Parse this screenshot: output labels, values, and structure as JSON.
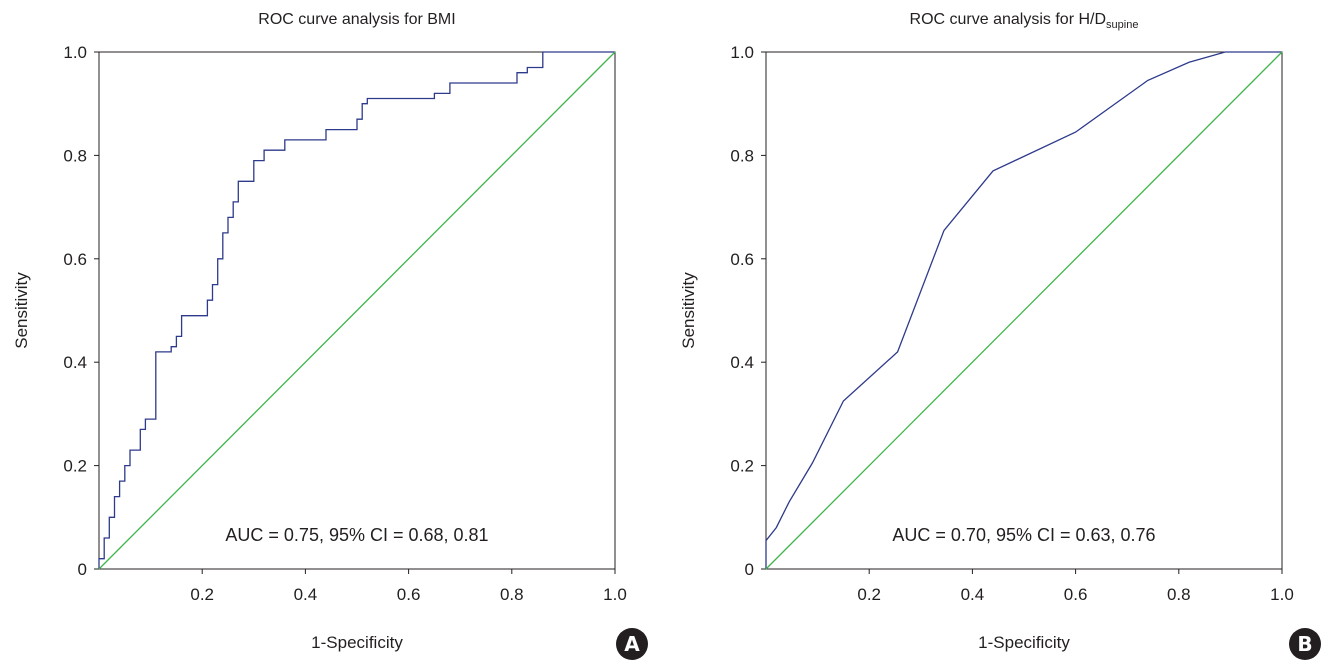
{
  "chart_data": [
    {
      "type": "line",
      "panel_label": "A",
      "title": "ROC curve analysis for BMI",
      "xlabel": "1-Specificity",
      "ylabel": "Sensitivity",
      "xlim": [
        0,
        1
      ],
      "ylim": [
        0,
        1
      ],
      "xticks": [
        "0.2",
        "0.4",
        "0.6",
        "0.8",
        "1.0"
      ],
      "yticks": [
        "0",
        "0.2",
        "0.4",
        "0.6",
        "0.8",
        "1.0"
      ],
      "annotation": "AUC = 0.75, 95% CI = 0.68, 0.81",
      "colors": {
        "curve": "#2e3a8c",
        "reference": "#3fb54a"
      },
      "series": [
        {
          "style": "step",
          "x": [
            0.0,
            0.0,
            0.01,
            0.01,
            0.02,
            0.02,
            0.03,
            0.03,
            0.04,
            0.04,
            0.05,
            0.05,
            0.06,
            0.06,
            0.08,
            0.08,
            0.09,
            0.09,
            0.11,
            0.11,
            0.14,
            0.14,
            0.15,
            0.15,
            0.16,
            0.16,
            0.21,
            0.21,
            0.22,
            0.22,
            0.23,
            0.23,
            0.24,
            0.24,
            0.25,
            0.25,
            0.26,
            0.26,
            0.27,
            0.27,
            0.3,
            0.3,
            0.32,
            0.32,
            0.36,
            0.36,
            0.44,
            0.44,
            0.5,
            0.5,
            0.51,
            0.51,
            0.52,
            0.52,
            0.65,
            0.65,
            0.68,
            0.68,
            0.81,
            0.81,
            0.83,
            0.83,
            0.86,
            0.86,
            0.87,
            0.87,
            1.0
          ],
          "y": [
            0.0,
            0.02,
            0.02,
            0.06,
            0.06,
            0.1,
            0.1,
            0.14,
            0.14,
            0.17,
            0.17,
            0.2,
            0.2,
            0.23,
            0.23,
            0.27,
            0.27,
            0.29,
            0.29,
            0.42,
            0.42,
            0.43,
            0.43,
            0.45,
            0.45,
            0.49,
            0.49,
            0.52,
            0.52,
            0.55,
            0.55,
            0.6,
            0.6,
            0.65,
            0.65,
            0.68,
            0.68,
            0.71,
            0.71,
            0.75,
            0.75,
            0.79,
            0.79,
            0.81,
            0.81,
            0.83,
            0.83,
            0.85,
            0.85,
            0.87,
            0.87,
            0.9,
            0.9,
            0.91,
            0.91,
            0.92,
            0.92,
            0.94,
            0.94,
            0.96,
            0.96,
            0.97,
            0.97,
            1.0,
            1.0,
            1.0,
            1.0
          ]
        },
        {
          "style": "reference",
          "x": [
            0,
            1
          ],
          "y": [
            0,
            1
          ]
        }
      ]
    },
    {
      "type": "line",
      "panel_label": "B",
      "title": "ROC curve analysis for H/D",
      "title_subscript": "supine",
      "xlabel": "1-Specificity",
      "ylabel": "Sensitivity",
      "xlim": [
        0,
        1
      ],
      "ylim": [
        0,
        1
      ],
      "xticks": [
        "0.2",
        "0.4",
        "0.6",
        "0.8",
        "1.0"
      ],
      "yticks": [
        "0",
        "0.2",
        "0.4",
        "0.6",
        "0.8",
        "1.0"
      ],
      "annotation": "AUC = 0.70, 95% CI = 0.63, 0.76",
      "colors": {
        "curve": "#2e3a8c",
        "reference": "#3fb54a"
      },
      "series": [
        {
          "style": "line",
          "x": [
            0.0,
            0.0,
            0.02,
            0.045,
            0.09,
            0.15,
            0.255,
            0.345,
            0.44,
            0.6,
            0.74,
            0.82,
            0.89,
            1.0
          ],
          "y": [
            0.0,
            0.055,
            0.08,
            0.13,
            0.205,
            0.325,
            0.42,
            0.655,
            0.77,
            0.845,
            0.945,
            0.98,
            1.0,
            1.0
          ]
        },
        {
          "style": "reference",
          "x": [
            0,
            1
          ],
          "y": [
            0,
            1
          ]
        }
      ]
    }
  ]
}
